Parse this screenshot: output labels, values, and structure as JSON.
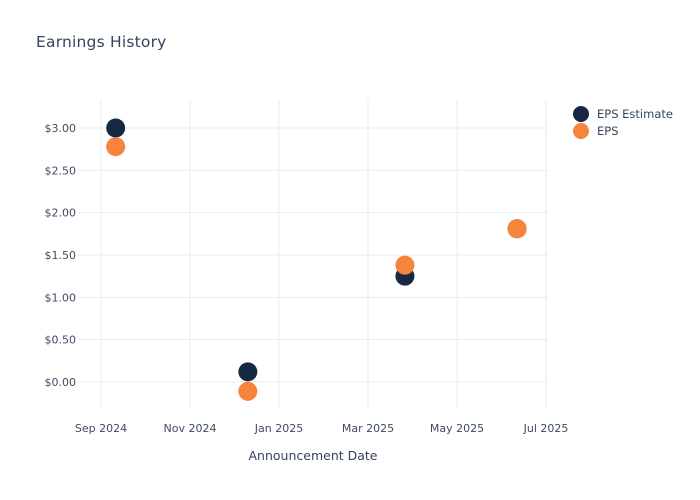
{
  "title": "Earnings History",
  "legend": {
    "eps_estimate_label": "EPS Estimate",
    "eps_label": "EPS"
  },
  "colors": {
    "eps_estimate": "#172942",
    "eps": "#f6843c",
    "gridline": "#e7edf3",
    "tick_text": "#3f4c61",
    "title_text": "#33455e",
    "background": "#ffffff"
  },
  "chart_data": {
    "type": "scatter",
    "title": "Earnings History",
    "xlabel": "Announcement Date",
    "ylabel": "",
    "grid": true,
    "legend_position": "top-right",
    "ylim": [
      -0.31,
      3.33
    ],
    "x_ticks": [
      {
        "label": "Sep 2024",
        "month_offset": 0
      },
      {
        "label": "Nov 2024",
        "month_offset": 2
      },
      {
        "label": "Jan 2025",
        "month_offset": 4
      },
      {
        "label": "Mar 2025",
        "month_offset": 6
      },
      {
        "label": "May 2025",
        "month_offset": 8
      },
      {
        "label": "Jul 2025",
        "month_offset": 10
      }
    ],
    "y_ticks": [
      {
        "label": "$0.00",
        "value": 0.0
      },
      {
        "label": "$0.50",
        "value": 0.5
      },
      {
        "label": "$1.00",
        "value": 1.0
      },
      {
        "label": "$1.50",
        "value": 1.5
      },
      {
        "label": "$2.00",
        "value": 2.0
      },
      {
        "label": "$2.50",
        "value": 2.5
      },
      {
        "label": "$3.00",
        "value": 3.0
      }
    ],
    "series": [
      {
        "name": "EPS Estimate",
        "color": "#172942",
        "points": [
          {
            "date": "Sep 2024",
            "month_offset": 0.33,
            "value": 3.0
          },
          {
            "date": "Dec 2024",
            "month_offset": 3.3,
            "value": 0.12
          },
          {
            "date": "Mar 2025",
            "month_offset": 6.83,
            "value": 1.25
          },
          {
            "date": "Jun 2025",
            "month_offset": 9.35,
            "value": 1.81
          }
        ]
      },
      {
        "name": "EPS",
        "color": "#f6843c",
        "points": [
          {
            "date": "Sep 2024",
            "month_offset": 0.33,
            "value": 2.78
          },
          {
            "date": "Dec 2024",
            "month_offset": 3.3,
            "value": -0.11
          },
          {
            "date": "Mar 2025",
            "month_offset": 6.83,
            "value": 1.38
          },
          {
            "date": "Jun 2025",
            "month_offset": 9.35,
            "value": 1.81
          }
        ]
      }
    ]
  }
}
